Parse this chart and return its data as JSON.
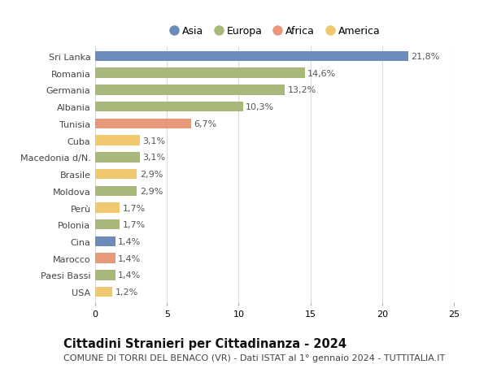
{
  "categories": [
    "Sri Lanka",
    "Romania",
    "Germania",
    "Albania",
    "Tunisia",
    "Cuba",
    "Macedonia d/N.",
    "Brasile",
    "Moldova",
    "Perù",
    "Polonia",
    "Cina",
    "Marocco",
    "Paesi Bassi",
    "USA"
  ],
  "values": [
    21.8,
    14.6,
    13.2,
    10.3,
    6.7,
    3.1,
    3.1,
    2.9,
    2.9,
    1.7,
    1.7,
    1.4,
    1.4,
    1.4,
    1.2
  ],
  "labels": [
    "21,8%",
    "14,6%",
    "13,2%",
    "10,3%",
    "6,7%",
    "3,1%",
    "3,1%",
    "2,9%",
    "2,9%",
    "1,7%",
    "1,7%",
    "1,4%",
    "1,4%",
    "1,4%",
    "1,2%"
  ],
  "continent": [
    "Asia",
    "Europa",
    "Europa",
    "Europa",
    "Africa",
    "America",
    "Europa",
    "America",
    "Europa",
    "America",
    "Europa",
    "Asia",
    "Africa",
    "Europa",
    "America"
  ],
  "colors": {
    "Asia": "#6b8cba",
    "Europa": "#a8b87a",
    "Africa": "#e8997a",
    "America": "#f0c96e"
  },
  "legend_order": [
    "Asia",
    "Europa",
    "Africa",
    "America"
  ],
  "title": "Cittadini Stranieri per Cittadinanza - 2024",
  "subtitle": "COMUNE DI TORRI DEL BENACO (VR) - Dati ISTAT al 1° gennaio 2024 - TUTTITALIA.IT",
  "xlim": [
    0,
    25
  ],
  "xticks": [
    0,
    5,
    10,
    15,
    20,
    25
  ],
  "background_color": "#ffffff",
  "grid_color": "#dddddd",
  "bar_height": 0.6,
  "title_fontsize": 10.5,
  "subtitle_fontsize": 8,
  "label_fontsize": 8,
  "tick_fontsize": 8,
  "legend_fontsize": 9
}
